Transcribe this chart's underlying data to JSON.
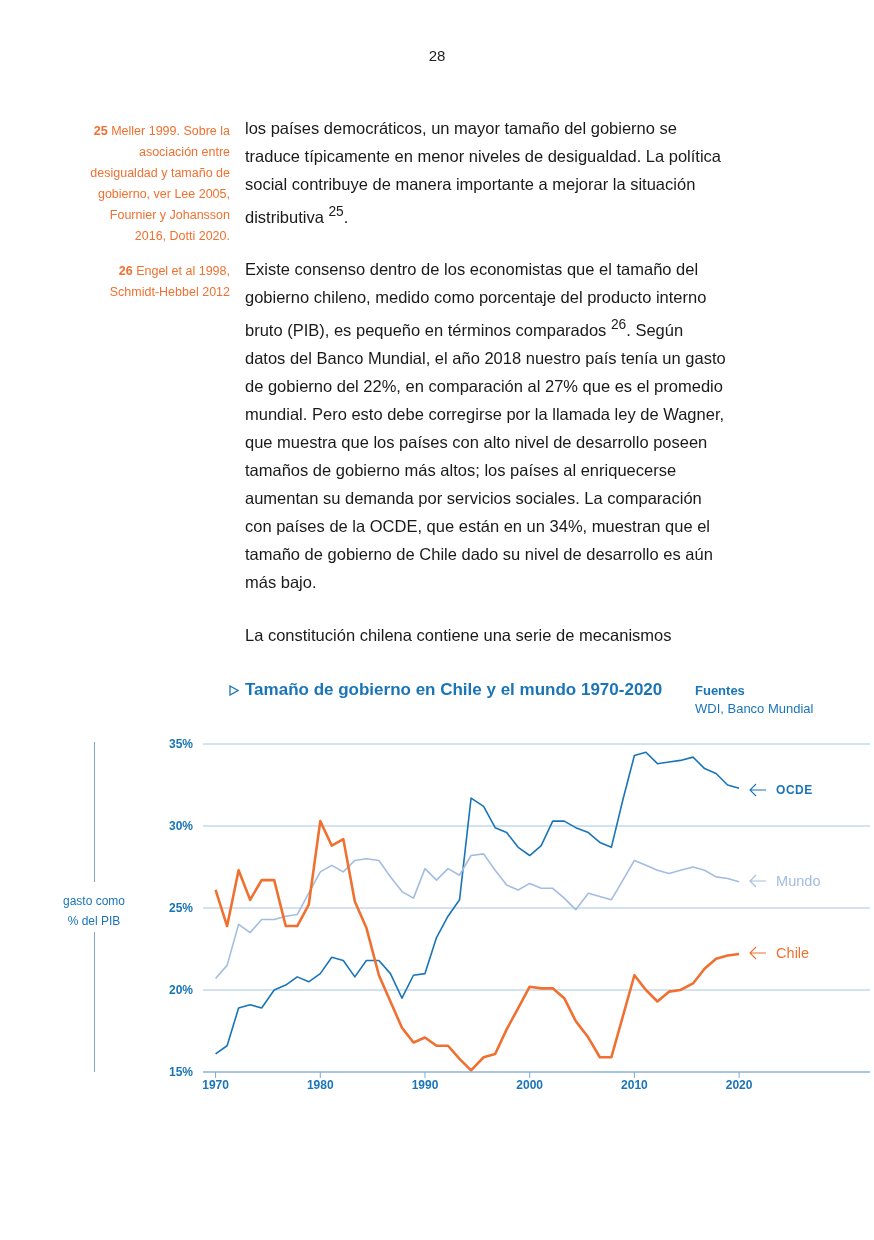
{
  "chart_data": {
    "type": "line",
    "title": "Tamaño de gobierno en Chile y el mundo 1970-2020",
    "ylabel": "gasto como % del PIB",
    "annotations": [
      "28",
      "25 Meller 1999. Sobre la asociación entre desigualdad y tamaño de gobierno, ver Lee 2005, Fournier y Johansson 2016, Dotti 2020.",
      "26 Engel et al 1998, Schmidt-Hebbel 2012",
      "los países democráticos, un mayor tamaño del gobierno se traduce típicamente en menor niveles de desigualdad. La política social contribuye de manera importante a mejorar la situación distributiva $^{25}$.",
      "Existe consenso dentro de los economistas que el tamaño del gobierno chileno, medido como porcentaje del producto interno bruto (PIB), es pequeño en términos comparados $^{26}$. Según datos del Banco Mundial, el año 2018 nuestro país tenía un gasto de gobierno del 22%, en comparación al 27% que es el promedio mundial. Pero esto debe corregirse por la llamada ley de Wagner, que muestra que los países con alto nivel de desarrollo poseen tamaños de gobierno más altos; los países al enriquecerse aumentan su demanda por servicios sociales. La comparación con países de la OCDE, que están en un 34%, muestran que el tamaño de gobierno de Chile dado su nivel de desarrollo es aún más bajo.",
      "La constitución chilena contiene una serie de mecanismos",
      "Fuentes",
      "WDI, Banco Mundial"
    ],
    "x": [
      1970,
      1971.1,
      1972.2,
      1973.3,
      1974.4,
      1975.6,
      1976.7,
      1977.8,
      1978.9,
      1980,
      1981.1,
      1982.2,
      1983.3,
      1984.4,
      1985.6,
      1986.7,
      1987.8,
      1988.9,
      1990,
      1991.1,
      1992.2,
      1993.3,
      1994.4,
      1995.6,
      1996.7,
      1997.8,
      1998.9,
      2000,
      2001.1,
      2002.2,
      2003.3,
      2004.4,
      2005.6,
      2006.7,
      2007.8,
      2008.9,
      2010,
      2011.1,
      2012.2,
      2013.3,
      2014.4,
      2015.6,
      2016.7,
      2017.8,
      2018.9,
      2020
    ],
    "series": [
      {
        "name": "OCDE",
        "color": "#1a75b8",
        "values": [
          16.1,
          16.6,
          18.9,
          19.1,
          18.9,
          20.0,
          20.3,
          20.8,
          20.5,
          21.0,
          22.0,
          21.8,
          20.8,
          21.8,
          21.8,
          21.0,
          19.5,
          20.9,
          21.0,
          23.2,
          24.5,
          25.5,
          31.7,
          31.2,
          29.9,
          29.6,
          28.7,
          28.2,
          28.8,
          30.3,
          30.3,
          29.9,
          29.6,
          29.0,
          28.7,
          31.6,
          34.3,
          34.5,
          33.8,
          33.9,
          34.0,
          34.2,
          33.5,
          33.2,
          32.5,
          32.3
        ]
      },
      {
        "name": "Mundo",
        "color": "#a3bde0",
        "values": [
          20.7,
          21.5,
          24.0,
          23.5,
          24.3,
          24.3,
          24.5,
          24.6,
          25.9,
          27.2,
          27.6,
          27.2,
          27.9,
          28.0,
          27.9,
          26.9,
          26.0,
          25.6,
          27.4,
          26.7,
          27.4,
          27.0,
          28.2,
          28.3,
          27.3,
          26.4,
          26.1,
          26.5,
          26.2,
          26.2,
          25.6,
          24.9,
          25.9,
          25.7,
          25.5,
          26.7,
          27.9,
          27.6,
          27.3,
          27.1,
          27.3,
          27.5,
          27.3,
          26.9,
          26.8,
          26.6
        ]
      },
      {
        "name": "Chile",
        "color": "#f07030",
        "values": [
          26.1,
          23.9,
          27.3,
          25.5,
          26.7,
          26.7,
          23.9,
          23.9,
          25.2,
          30.3,
          28.8,
          29.2,
          25.4,
          23.8,
          20.9,
          19.3,
          17.7,
          16.8,
          17.1,
          16.6,
          16.6,
          15.8,
          15.1,
          15.9,
          16.1,
          17.6,
          18.9,
          20.2,
          20.1,
          20.1,
          19.5,
          18.1,
          17.1,
          15.9,
          15.9,
          18.4,
          20.9,
          20.0,
          19.3,
          19.9,
          20.0,
          20.4,
          21.3,
          21.9,
          22.1,
          22.2
        ]
      }
    ],
    "xlim": [
      1968.8,
      2032.5
    ],
    "xticks": [
      1970,
      1980,
      1990,
      2000,
      2010,
      2020
    ],
    "ylim": [
      15,
      35
    ],
    "yticks": [
      {
        "value": 15,
        "label": "15%"
      },
      {
        "value": 20,
        "label": "20%"
      },
      {
        "value": 25,
        "label": "25%"
      },
      {
        "value": 30,
        "label": "30%"
      },
      {
        "value": 35,
        "label": "35%"
      }
    ],
    "grid": "y",
    "legend": "right",
    "marker": "none",
    "line_style": "solid"
  }
}
